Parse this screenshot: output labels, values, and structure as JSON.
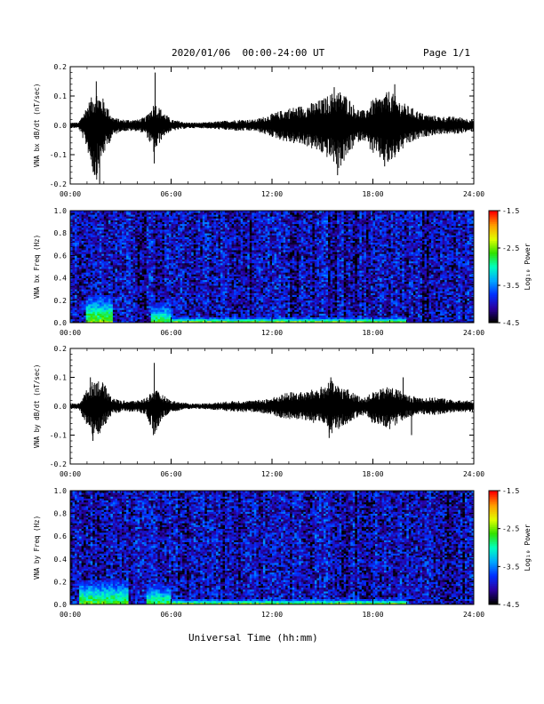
{
  "header": {
    "title": "2020/01/06  00:00-24:00 UT",
    "page": "Page 1/1"
  },
  "x_axis_title": "Universal Time (hh:mm)",
  "colorbar": {
    "label": "Log₁₀ Power",
    "ticks": [
      "-1.5",
      "-2.5",
      "-3.5",
      "-4.5"
    ],
    "colors": [
      "#000000",
      "#2b00a0",
      "#0030ff",
      "#00a8ff",
      "#00ffc0",
      "#30e000",
      "#e0ff00",
      "#ffa000",
      "#ff0000"
    ]
  },
  "chart_data": [
    {
      "type": "line",
      "title": "",
      "ylabel": "VNA bx dB/dt (nT/sec)",
      "xlabel": "",
      "x_range_hours": [
        0,
        24
      ],
      "xticklabels": [
        "00:00",
        "06:00",
        "12:00",
        "18:00",
        "24:00"
      ],
      "ylim": [
        -0.2,
        0.2
      ],
      "yticklabels": [
        "0.2",
        "0.1",
        "0.0",
        "-0.1",
        "-0.2"
      ],
      "envelope": {
        "hours": [
          0,
          0.5,
          1,
          1.5,
          2,
          2.5,
          3,
          3.5,
          4,
          4.5,
          5,
          5.5,
          6,
          7,
          8,
          9,
          10,
          10.5,
          11,
          12,
          13,
          14,
          15,
          15.5,
          16,
          16.5,
          17,
          17.5,
          18,
          18.5,
          19,
          19.5,
          20,
          21,
          22,
          23,
          24
        ],
        "max": [
          0.01,
          0.01,
          0.07,
          0.12,
          0.09,
          0.03,
          0.02,
          0.02,
          0.02,
          0.03,
          0.08,
          0.05,
          0.02,
          0.01,
          0.01,
          0.015,
          0.02,
          0.02,
          0.02,
          0.04,
          0.06,
          0.07,
          0.09,
          0.11,
          0.12,
          0.1,
          0.06,
          0.05,
          0.09,
          0.1,
          0.12,
          0.09,
          0.07,
          0.04,
          0.03,
          0.03,
          0.02
        ],
        "min": [
          -0.01,
          -0.01,
          -0.08,
          -0.2,
          -0.1,
          -0.04,
          -0.02,
          -0.02,
          -0.02,
          -0.03,
          -0.1,
          -0.04,
          -0.02,
          -0.01,
          -0.01,
          -0.015,
          -0.02,
          -0.02,
          -0.02,
          -0.04,
          -0.06,
          -0.07,
          -0.1,
          -0.12,
          -0.15,
          -0.11,
          -0.06,
          -0.05,
          -0.1,
          -0.12,
          -0.14,
          -0.1,
          -0.07,
          -0.04,
          -0.03,
          -0.03,
          -0.02
        ]
      },
      "spikes": [
        {
          "hour": 1.75,
          "value": -0.2
        },
        {
          "hour": 1.55,
          "value": 0.15
        },
        {
          "hour": 5.05,
          "value": 0.18
        },
        {
          "hour": 5.0,
          "value": -0.13
        },
        {
          "hour": 15.9,
          "value": -0.17
        },
        {
          "hour": 15.7,
          "value": 0.13
        },
        {
          "hour": 18.7,
          "value": -0.14
        },
        {
          "hour": 19.3,
          "value": 0.14
        }
      ]
    },
    {
      "type": "heatmap",
      "title": "",
      "ylabel": "VNA bx Freq (Hz)",
      "xlabel": "",
      "x_range_hours": [
        0,
        24
      ],
      "xticklabels": [
        "00:00",
        "06:00",
        "12:00",
        "18:00",
        "24:00"
      ],
      "ylim": [
        0,
        1.0
      ],
      "yticklabels": [
        "1.0",
        "0.8",
        "0.6",
        "0.4",
        "0.2",
        "0.0"
      ],
      "zlim": [
        -4.5,
        -1.5
      ],
      "low_freq_enhancement": [
        {
          "hours": [
            1.0,
            2.5
          ],
          "freq_top": 0.25,
          "peak": -2.4
        },
        {
          "hours": [
            4.8,
            6.0
          ],
          "freq_top": 0.18,
          "peak": -2.6
        },
        {
          "hours": [
            6.0,
            20.0
          ],
          "freq_top": 0.05,
          "peak": -2.2
        }
      ]
    },
    {
      "type": "line",
      "title": "",
      "ylabel": "VNA by dB/dt (nT/sec)",
      "xlabel": "",
      "x_range_hours": [
        0,
        24
      ],
      "xticklabels": [
        "00:00",
        "06:00",
        "12:00",
        "18:00",
        "24:00"
      ],
      "ylim": [
        -0.2,
        0.2
      ],
      "yticklabels": [
        "0.2",
        "0.1",
        "0.0",
        "-0.1",
        "-0.2"
      ],
      "envelope": {
        "hours": [
          0,
          0.5,
          1,
          1.5,
          2,
          2.5,
          3,
          3.5,
          4,
          4.5,
          5,
          5.5,
          6,
          7,
          8,
          9,
          10,
          10.5,
          11,
          12,
          13,
          14,
          15,
          15.5,
          16,
          16.5,
          17,
          17.5,
          18,
          18.5,
          19,
          19.5,
          20,
          21,
          22,
          23,
          24
        ],
        "max": [
          0.01,
          0.01,
          0.06,
          0.1,
          0.08,
          0.03,
          0.02,
          0.02,
          0.02,
          0.03,
          0.06,
          0.04,
          0.02,
          0.01,
          0.01,
          0.015,
          0.02,
          0.02,
          0.02,
          0.03,
          0.05,
          0.05,
          0.07,
          0.09,
          0.07,
          0.06,
          0.04,
          0.03,
          0.05,
          0.06,
          0.07,
          0.06,
          0.04,
          0.03,
          0.03,
          0.02,
          0.02
        ],
        "min": [
          -0.01,
          -0.01,
          -0.07,
          -0.12,
          -0.07,
          -0.03,
          -0.02,
          -0.02,
          -0.02,
          -0.03,
          -0.1,
          -0.04,
          -0.02,
          -0.01,
          -0.01,
          -0.015,
          -0.02,
          -0.02,
          -0.02,
          -0.03,
          -0.05,
          -0.05,
          -0.07,
          -0.1,
          -0.08,
          -0.06,
          -0.04,
          -0.03,
          -0.06,
          -0.07,
          -0.08,
          -0.06,
          -0.04,
          -0.03,
          -0.03,
          -0.02,
          -0.02
        ]
      },
      "spikes": [
        {
          "hour": 1.2,
          "value": 0.1
        },
        {
          "hour": 1.35,
          "value": -0.12
        },
        {
          "hour": 5.0,
          "value": 0.15
        },
        {
          "hour": 4.95,
          "value": -0.1
        },
        {
          "hour": 15.4,
          "value": -0.11
        },
        {
          "hour": 15.5,
          "value": 0.1
        },
        {
          "hour": 19.8,
          "value": 0.1
        },
        {
          "hour": 20.3,
          "value": -0.1
        }
      ]
    },
    {
      "type": "heatmap",
      "title": "",
      "ylabel": "VNA by Freq (Hz)",
      "xlabel": "",
      "x_range_hours": [
        0,
        24
      ],
      "xticklabels": [
        "00:00",
        "06:00",
        "12:00",
        "18:00",
        "24:00"
      ],
      "ylim": [
        0,
        1.0
      ],
      "yticklabels": [
        "1.0",
        "0.8",
        "0.6",
        "0.4",
        "0.2",
        "0.0"
      ],
      "zlim": [
        -4.5,
        -1.5
      ],
      "low_freq_enhancement": [
        {
          "hours": [
            0.5,
            3.5
          ],
          "freq_top": 0.22,
          "peak": -2.5
        },
        {
          "hours": [
            4.5,
            6.0
          ],
          "freq_top": 0.17,
          "peak": -2.6
        },
        {
          "hours": [
            6.0,
            20.0
          ],
          "freq_top": 0.05,
          "peak": -2.3
        }
      ]
    }
  ]
}
